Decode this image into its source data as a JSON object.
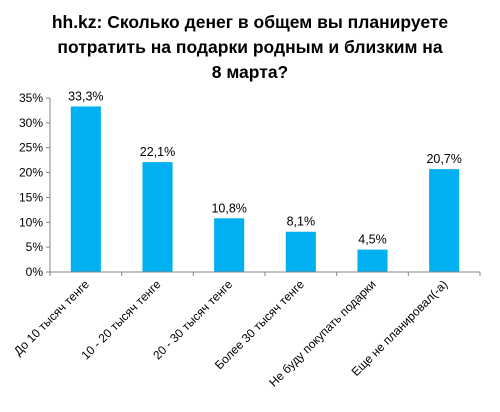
{
  "chart_data": {
    "type": "bar",
    "title_lines": [
      "hh.kz: Сколько денег в общем вы планируете",
      "потратить на подарки родным и близким на",
      "8 марта?"
    ],
    "categories": [
      "До 10 тысяч тенге",
      "10 - 20 тысяч тенге",
      "20 - 30 тысяч тенге",
      "Более 30 тысяч тенге",
      "Не буду покупать подарки",
      "Еще не планировал(-а)"
    ],
    "values": [
      33.3,
      22.1,
      10.8,
      8.1,
      4.5,
      20.7
    ],
    "data_labels": [
      "33,3%",
      "22,1%",
      "10,8%",
      "8,1%",
      "4,5%",
      "20,7%"
    ],
    "yticks": [
      0,
      5,
      10,
      15,
      20,
      25,
      30,
      35
    ],
    "ytick_labels": [
      "0%",
      "5%",
      "10%",
      "15%",
      "20%",
      "25%",
      "30%",
      "35%"
    ],
    "ylim": [
      0,
      35
    ],
    "grid": false,
    "bar_color": "#00B0F0",
    "axis_color": "#868686"
  }
}
